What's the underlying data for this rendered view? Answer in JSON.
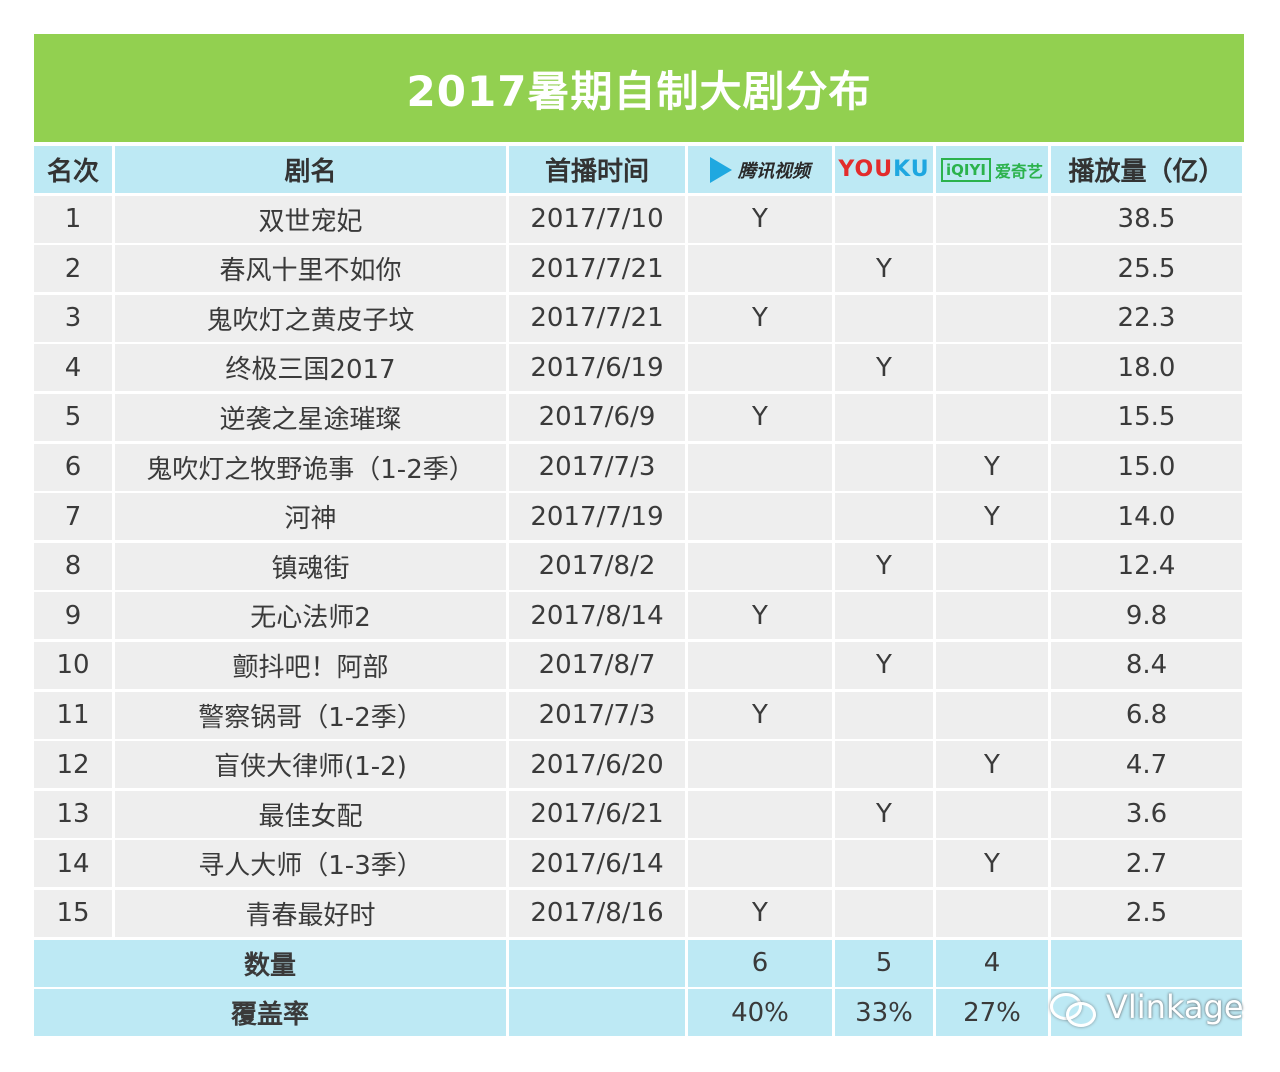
{
  "chart_data": {
    "type": "table",
    "title": "2017暑期自制大剧分布",
    "columns": [
      "名次",
      "剧名",
      "首播时间",
      "腾讯视频",
      "YOUKU",
      "爱奇艺",
      "播放量（亿）"
    ],
    "rows": [
      {
        "rank": "1",
        "name": "双世宠妃",
        "date": "2017/7/10",
        "tencent": "Y",
        "youku": "",
        "iqiyi": "",
        "views": "38.5"
      },
      {
        "rank": "2",
        "name": "春风十里不如你",
        "date": "2017/7/21",
        "tencent": "",
        "youku": "Y",
        "iqiyi": "",
        "views": "25.5"
      },
      {
        "rank": "3",
        "name": "鬼吹灯之黄皮子坟",
        "date": "2017/7/21",
        "tencent": "Y",
        "youku": "",
        "iqiyi": "",
        "views": "22.3"
      },
      {
        "rank": "4",
        "name": "终极三国2017",
        "date": "2017/6/19",
        "tencent": "",
        "youku": "Y",
        "iqiyi": "",
        "views": "18.0"
      },
      {
        "rank": "5",
        "name": "逆袭之星途璀璨",
        "date": "2017/6/9",
        "tencent": "Y",
        "youku": "",
        "iqiyi": "",
        "views": "15.5"
      },
      {
        "rank": "6",
        "name": "鬼吹灯之牧野诡事（1-2季）",
        "date": "2017/7/3",
        "tencent": "",
        "youku": "",
        "iqiyi": "Y",
        "views": "15.0"
      },
      {
        "rank": "7",
        "name": "河神",
        "date": "2017/7/19",
        "tencent": "",
        "youku": "",
        "iqiyi": "Y",
        "views": "14.0"
      },
      {
        "rank": "8",
        "name": "镇魂街",
        "date": "2017/8/2",
        "tencent": "",
        "youku": "Y",
        "iqiyi": "",
        "views": "12.4"
      },
      {
        "rank": "9",
        "name": "无心法师2",
        "date": "2017/8/14",
        "tencent": "Y",
        "youku": "",
        "iqiyi": "",
        "views": "9.8"
      },
      {
        "rank": "10",
        "name": "颤抖吧！阿部",
        "date": "2017/8/7",
        "tencent": "",
        "youku": "Y",
        "iqiyi": "",
        "views": "8.4"
      },
      {
        "rank": "11",
        "name": "警察锅哥（1-2季）",
        "date": "2017/7/3",
        "tencent": "Y",
        "youku": "",
        "iqiyi": "",
        "views": "6.8"
      },
      {
        "rank": "12",
        "name": "盲侠大律师(1-2)",
        "date": "2017/6/20",
        "tencent": "",
        "youku": "",
        "iqiyi": "Y",
        "views": "4.7"
      },
      {
        "rank": "13",
        "name": "最佳女配",
        "date": "2017/6/21",
        "tencent": "",
        "youku": "Y",
        "iqiyi": "",
        "views": "3.6"
      },
      {
        "rank": "14",
        "name": "寻人大师（1-3季）",
        "date": "2017/6/14",
        "tencent": "",
        "youku": "",
        "iqiyi": "Y",
        "views": "2.7"
      },
      {
        "rank": "15",
        "name": "青春最好时",
        "date": "2017/8/16",
        "tencent": "Y",
        "youku": "",
        "iqiyi": "",
        "views": "2.5"
      }
    ],
    "summary": [
      {
        "label": "数量",
        "tencent": "6",
        "youku": "5",
        "iqiyi": "4"
      },
      {
        "label": "覆盖率",
        "tencent": "40%",
        "youku": "33%",
        "iqiyi": "27%"
      }
    ]
  },
  "logos": {
    "tencent": {
      "text": "腾讯视频",
      "icon": "tencent-play-icon",
      "color": "#1fa8e0"
    },
    "youku": {
      "part1": "YOU",
      "part2": "KU",
      "color1": "#e22c2c",
      "color2": "#1ea7e0"
    },
    "iqiyi": {
      "box": "iQIYI",
      "text": "爱奇艺",
      "color": "#2bb24c"
    }
  },
  "colors": {
    "title_bg": "#92d050",
    "header_bg": "#bde9f4",
    "row_bg": "#eeeeee"
  },
  "watermark": {
    "text": "Vlinkage",
    "icon": "wechat-icon"
  }
}
